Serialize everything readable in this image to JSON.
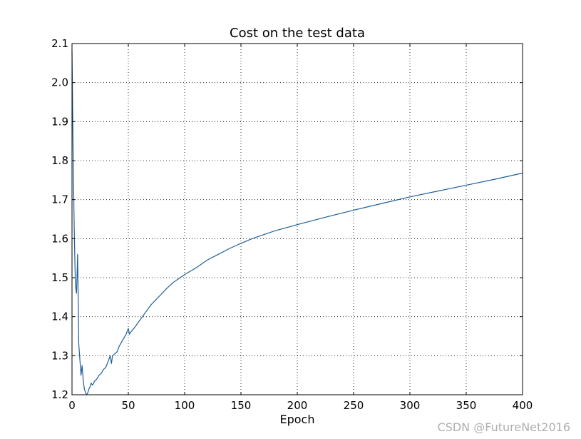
{
  "chart_data": {
    "type": "line",
    "title": "Cost on the test data",
    "xlabel": "Epoch",
    "ylabel": "",
    "xlim": [
      0,
      400
    ],
    "ylim": [
      1.2,
      2.1
    ],
    "xticks": [
      0,
      50,
      100,
      150,
      200,
      250,
      300,
      350,
      400
    ],
    "yticks": [
      1.2,
      1.3,
      1.4,
      1.5,
      1.6,
      1.7,
      1.8,
      1.9,
      2.0,
      2.1
    ],
    "xtick_labels": [
      "0",
      "50",
      "100",
      "150",
      "200",
      "250",
      "300",
      "350",
      "400"
    ],
    "ytick_labels": [
      "1.2",
      "1.3",
      "1.4",
      "1.5",
      "1.6",
      "1.7",
      "1.8",
      "1.9",
      "2.0",
      "2.1"
    ],
    "grid": true,
    "line_color": "#1f5f9a",
    "series": [
      {
        "x": [
          0,
          1,
          2,
          3,
          4,
          5,
          6,
          7,
          8,
          9,
          10,
          11,
          12,
          13,
          14,
          15,
          16,
          17,
          18,
          19,
          20,
          22,
          24,
          26,
          28,
          30,
          32,
          34,
          35,
          36,
          38,
          40,
          42,
          44,
          46,
          48,
          50,
          51,
          52,
          55,
          60,
          65,
          70,
          75,
          80,
          85,
          90,
          95,
          100,
          110,
          120,
          130,
          140,
          150,
          160,
          170,
          180,
          190,
          200,
          225,
          250,
          275,
          300,
          325,
          350,
          375,
          400
        ],
        "y": [
          2.08,
          1.82,
          1.62,
          1.48,
          1.46,
          1.56,
          1.33,
          1.29,
          1.25,
          1.275,
          1.235,
          1.215,
          1.205,
          1.2,
          1.205,
          1.215,
          1.22,
          1.23,
          1.225,
          1.228,
          1.235,
          1.24,
          1.25,
          1.255,
          1.265,
          1.27,
          1.285,
          1.3,
          1.28,
          1.3,
          1.305,
          1.31,
          1.325,
          1.335,
          1.345,
          1.355,
          1.37,
          1.355,
          1.36,
          1.37,
          1.39,
          1.41,
          1.43,
          1.445,
          1.46,
          1.475,
          1.488,
          1.498,
          1.508,
          1.525,
          1.545,
          1.56,
          1.575,
          1.588,
          1.6,
          1.61,
          1.62,
          1.628,
          1.636,
          1.655,
          1.673,
          1.69,
          1.707,
          1.722,
          1.737,
          1.752,
          1.768
        ]
      }
    ]
  },
  "watermark": "CSDN @FutureNet2016"
}
